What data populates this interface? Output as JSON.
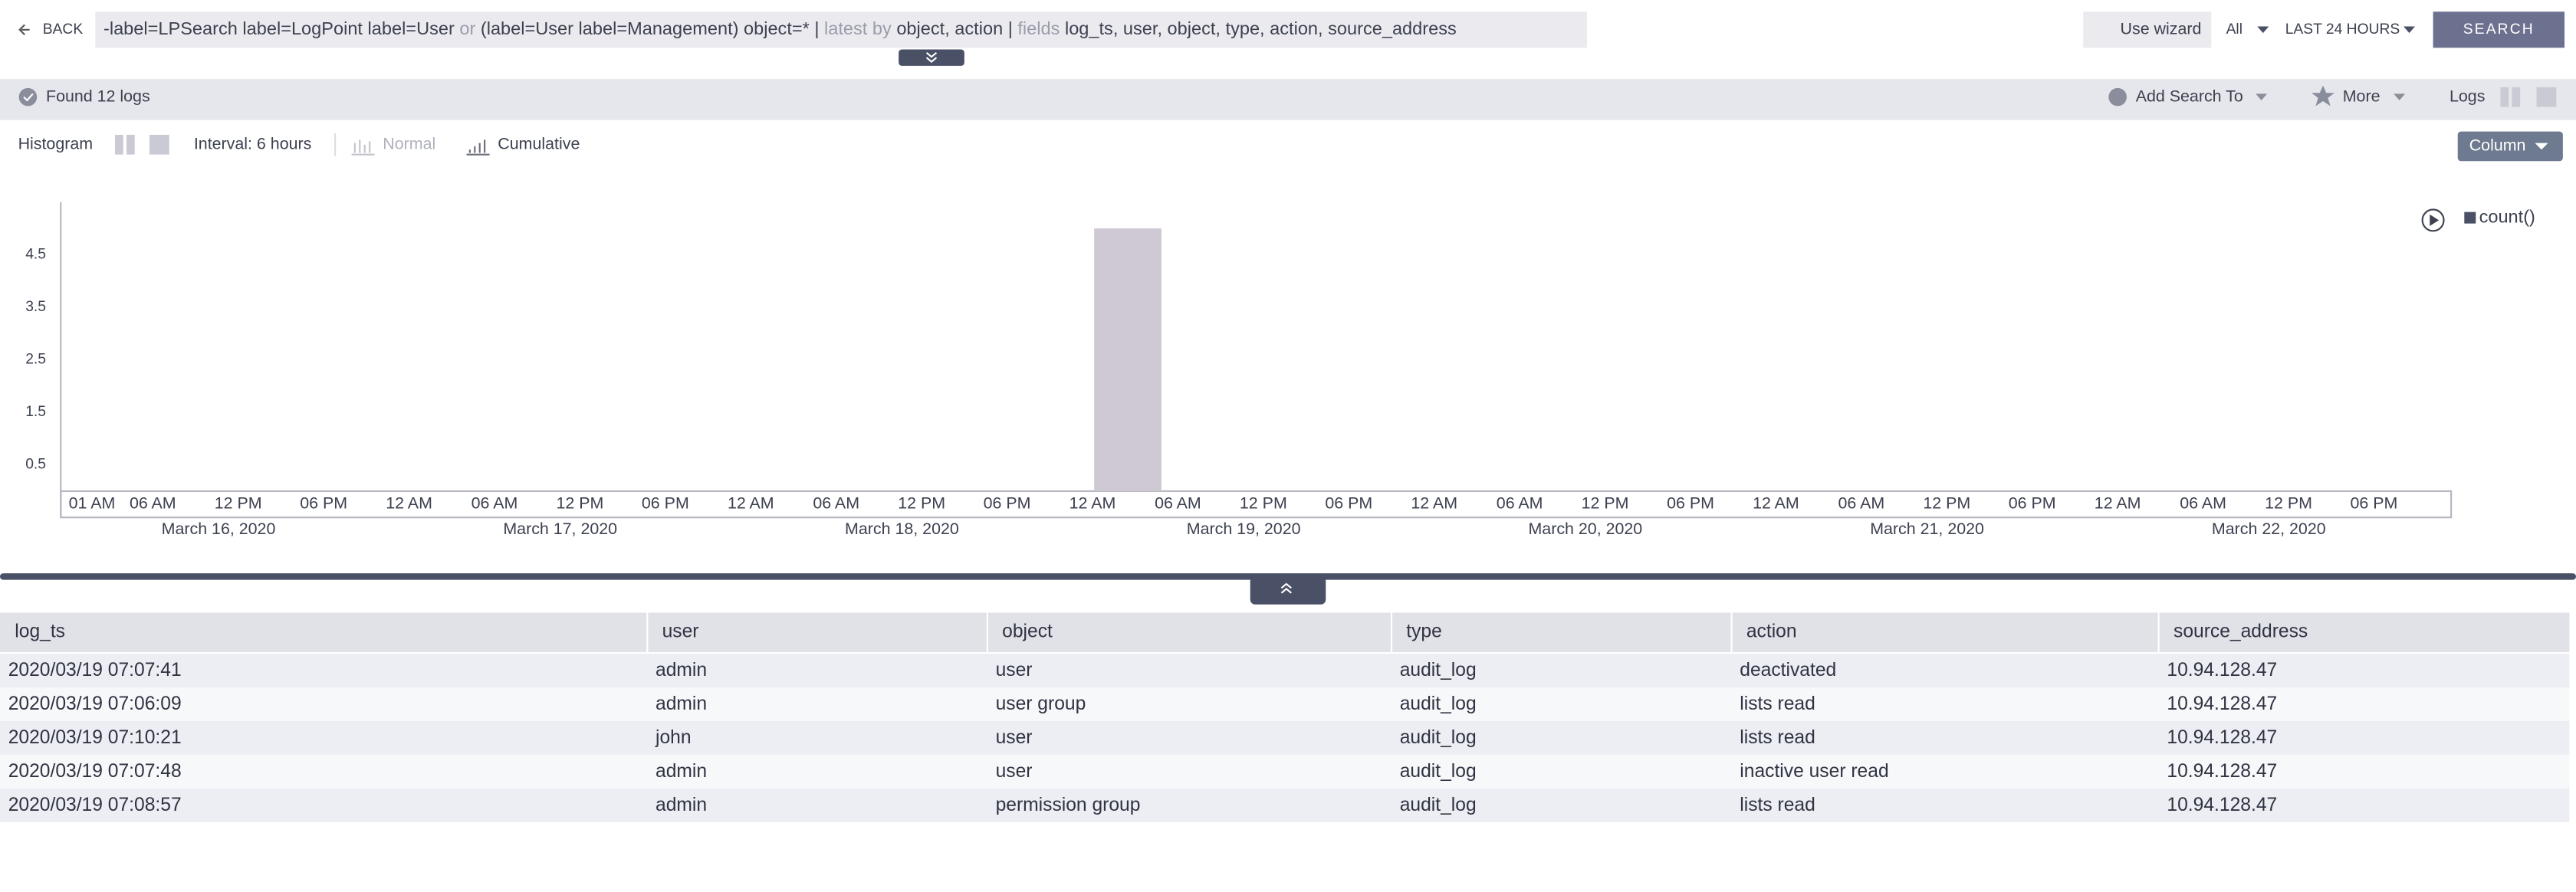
{
  "header": {
    "back": "BACK",
    "query": [
      "-label=LPSearch label=LogPoint label=User ",
      "or",
      " (label=User label=Management) object=* | ",
      "latest by",
      " object, action | ",
      "fields",
      " log_ts, user, object, type, action, source_address"
    ],
    "use_wizard": "Use wizard",
    "scope": "All",
    "time_range": "LAST 24 HOURS",
    "search": "SEARCH"
  },
  "toolbar": {
    "found": "Found 12 logs",
    "add_search": "Add Search To",
    "more": "More",
    "logs": "Logs"
  },
  "histogram_bar": {
    "histogram": "Histogram",
    "interval": "Interval: 6 hours",
    "normal": "Normal",
    "cumulative": "Cumulative",
    "column": "Column"
  },
  "chart_data": {
    "type": "bar",
    "categories": [
      "01 AM",
      "06 AM",
      "12 PM",
      "06 PM",
      "12 AM",
      "06 AM",
      "12 PM",
      "06 PM",
      "12 AM",
      "06 AM",
      "12 PM",
      "06 PM",
      "12 AM",
      "06 AM",
      "12 PM",
      "06 PM",
      "12 AM",
      "06 AM",
      "12 PM",
      "06 PM",
      "12 AM",
      "06 AM",
      "12 PM",
      "06 PM",
      "12 AM",
      "06 AM",
      "12 PM",
      "06 PM"
    ],
    "dates": [
      "March 16, 2020",
      "March 17, 2020",
      "March 18, 2020",
      "March 19, 2020",
      "March 20, 2020",
      "March 21, 2020",
      "March 22, 2020"
    ],
    "series": [
      {
        "name": "count()",
        "color": "#cfc9d4",
        "values": [
          0,
          0,
          0,
          0,
          0,
          0,
          0,
          0,
          0,
          0,
          0,
          0,
          5,
          0,
          0,
          0,
          0,
          0,
          0,
          0,
          0,
          0,
          0,
          0,
          0,
          0,
          0,
          0
        ]
      }
    ],
    "ylim": [
      0,
      5.5
    ],
    "yticks": [
      0.5,
      1.5,
      2.5,
      3.5,
      4.5
    ],
    "grid": false
  },
  "table": {
    "columns": [
      "log_ts",
      "user",
      "object",
      "type",
      "action",
      "source_address"
    ],
    "rows": [
      [
        "2020/03/19 07:07:41",
        "admin",
        "user",
        "audit_log",
        "deactivated",
        "10.94.128.47"
      ],
      [
        "2020/03/19 07:06:09",
        "admin",
        "user group",
        "audit_log",
        "lists read",
        "10.94.128.47"
      ],
      [
        "2020/03/19 07:10:21",
        "john",
        "user",
        "audit_log",
        "lists read",
        "10.94.128.47"
      ],
      [
        "2020/03/19 07:07:48",
        "admin",
        "user",
        "audit_log",
        "inactive user read",
        "10.94.128.47"
      ],
      [
        "2020/03/19 07:08:57",
        "admin",
        "permission group",
        "audit_log",
        "lists read",
        "10.94.128.47"
      ]
    ]
  }
}
